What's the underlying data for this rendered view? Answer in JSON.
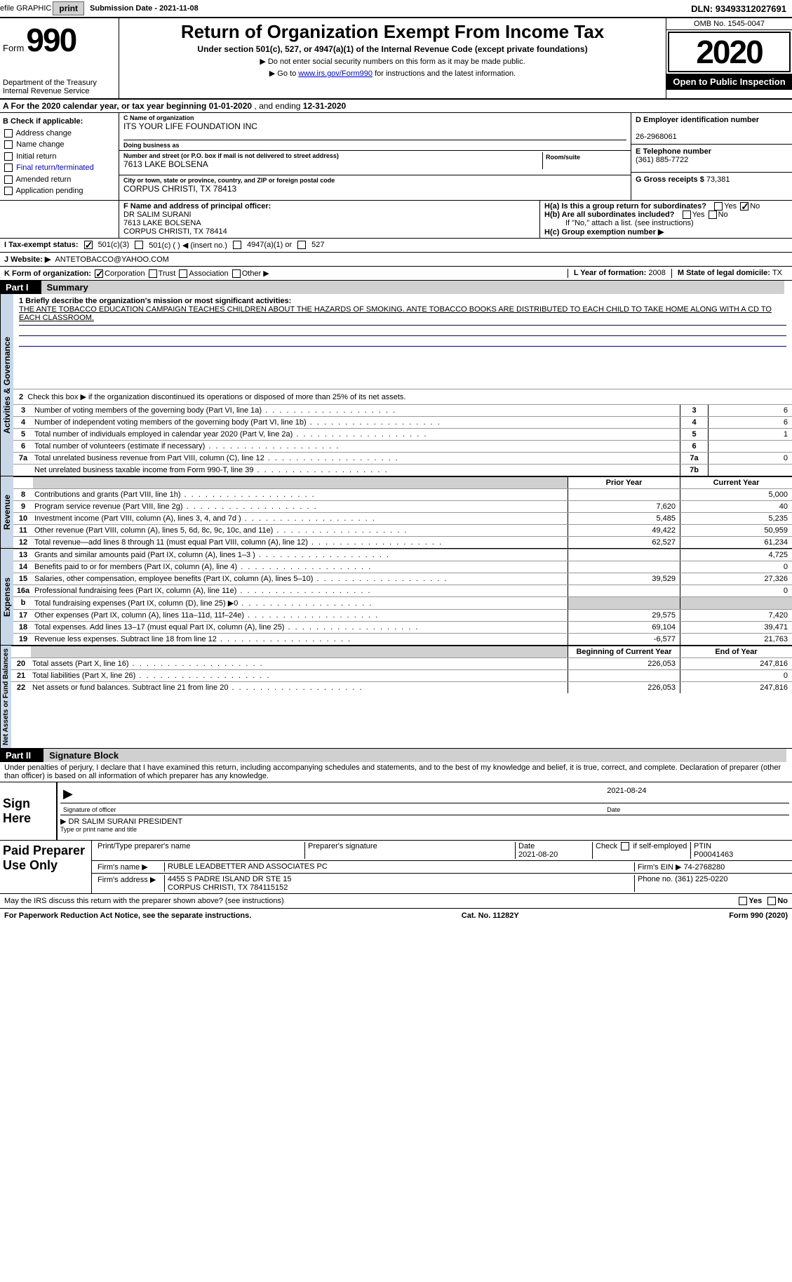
{
  "top_bar": {
    "efile_label": "efile GRAPHIC",
    "print_btn": "print",
    "submission_label": "Submission Date - ",
    "submission_date": "2021-11-08",
    "dln_label": "DLN: ",
    "dln": "93493312027691"
  },
  "header": {
    "form_label": "Form",
    "form_number": "990",
    "dept": "Department of the Treasury",
    "irs": "Internal Revenue Service",
    "title": "Return of Organization Exempt From Income Tax",
    "subtitle": "Under section 501(c), 527, or 4947(a)(1) of the Internal Revenue Code (except private foundations)",
    "note1": "▶ Do not enter social security numbers on this form as it may be made public.",
    "note2_pre": "▶ Go to ",
    "note2_link": "www.irs.gov/Form990",
    "note2_post": " for instructions and the latest information.",
    "omb": "OMB No. 1545-0047",
    "year": "2020",
    "inspection": "Open to Public Inspection"
  },
  "line_a": {
    "text_pre": "A For the 2020 calendar year, or tax year beginning ",
    "begin": "01-01-2020",
    "mid": "   , and ending ",
    "end": "12-31-2020"
  },
  "section_b": {
    "header": "B Check if applicable:",
    "opts": [
      "Address change",
      "Name change",
      "Initial return",
      "Final return/terminated",
      "Amended return",
      "Application pending"
    ]
  },
  "section_c": {
    "name_label": "C Name of organization",
    "name": "ITS YOUR LIFE FOUNDATION INC",
    "dba_label": "Doing business as",
    "addr_label": "Number and street (or P.O. box if mail is not delivered to street address)",
    "room_label": "Room/suite",
    "addr": "7613 LAKE BOLSENA",
    "city_label": "City or town, state or province, country, and ZIP or foreign postal code",
    "city": "CORPUS CHRISTI, TX  78413"
  },
  "section_d": {
    "label": "D Employer identification number",
    "ein": "26-2968061"
  },
  "section_e": {
    "label": "E Telephone number",
    "phone": "(361) 885-7722"
  },
  "section_g": {
    "label": "G Gross receipts $ ",
    "amount": "73,381"
  },
  "section_f": {
    "label": "F Name and address of principal officer:",
    "name": "DR SALIM SURANI",
    "addr1": "7613 LAKE BOLSENA",
    "addr2": "CORPUS CHRISTI, TX  78414"
  },
  "section_h": {
    "ha": "H(a)  Is this a group return for subordinates?",
    "hb": "H(b)  Are all subordinates included?",
    "hb_note": "If \"No,\" attach a list. (see instructions)",
    "hc": "H(c)  Group exemption number ▶",
    "yes": "Yes",
    "no": "No"
  },
  "section_i": {
    "label": "I  Tax-exempt status:",
    "opt1": "501(c)(3)",
    "opt2": "501(c) (  ) ◀ (insert no.)",
    "opt3": "4947(a)(1) or",
    "opt4": "527"
  },
  "section_j": {
    "label": "J  Website: ▶",
    "value": "ANTETOBACCO@YAHOO.COM"
  },
  "section_k": {
    "label": "K Form of organization:",
    "corp": "Corporation",
    "trust": "Trust",
    "assoc": "Association",
    "other": "Other ▶"
  },
  "section_l": {
    "label": "L Year of formation: ",
    "value": "2008"
  },
  "section_m": {
    "label": "M State of legal domicile: ",
    "value": "TX"
  },
  "part1": {
    "header": "Part I",
    "title": "Summary",
    "section_labels": {
      "gov": "Activities & Governance",
      "rev": "Revenue",
      "exp": "Expenses",
      "net": "Net Assets or Fund Balances"
    },
    "line1_label": "1  Briefly describe the organization's mission or most significant activities:",
    "mission": "THE ANTE TOBACCO EDUCATION CAMPAIGN TEACHES CHILDREN ABOUT THE HAZARDS OF SMOKING. ANTE TOBACCO BOOKS ARE DISTRIBUTED TO EACH CHILD TO TAKE HOME ALONG WITH A CD TO EACH CLASSROOM.",
    "line2": "Check this box ▶       if the organization discontinued its operations or disposed of more than 25% of its net assets.",
    "gov_lines": [
      {
        "no": "3",
        "desc": "Number of voting members of the governing body (Part VI, line 1a)",
        "box": "3",
        "val": "6"
      },
      {
        "no": "4",
        "desc": "Number of independent voting members of the governing body (Part VI, line 1b)",
        "box": "4",
        "val": "6"
      },
      {
        "no": "5",
        "desc": "Total number of individuals employed in calendar year 2020 (Part V, line 2a)",
        "box": "5",
        "val": "1"
      },
      {
        "no": "6",
        "desc": "Total number of volunteers (estimate if necessary)",
        "box": "6",
        "val": ""
      },
      {
        "no": "7a",
        "desc": "Total unrelated business revenue from Part VIII, column (C), line 12",
        "box": "7a",
        "val": "0"
      },
      {
        "no": "",
        "desc": "Net unrelated business taxable income from Form 990-T, line 39",
        "box": "7b",
        "val": ""
      }
    ],
    "col_py": "Prior Year",
    "col_cy": "Current Year",
    "rev_lines": [
      {
        "no": "8",
        "desc": "Contributions and grants (Part VIII, line 1h)",
        "py": "",
        "cy": "5,000"
      },
      {
        "no": "9",
        "desc": "Program service revenue (Part VIII, line 2g)",
        "py": "7,620",
        "cy": "40"
      },
      {
        "no": "10",
        "desc": "Investment income (Part VIII, column (A), lines 3, 4, and 7d )",
        "py": "5,485",
        "cy": "5,235"
      },
      {
        "no": "11",
        "desc": "Other revenue (Part VIII, column (A), lines 5, 6d, 8c, 9c, 10c, and 11e)",
        "py": "49,422",
        "cy": "50,959"
      },
      {
        "no": "12",
        "desc": "Total revenue—add lines 8 through 11 (must equal Part VIII, column (A), line 12)",
        "py": "62,527",
        "cy": "61,234"
      }
    ],
    "exp_lines": [
      {
        "no": "13",
        "desc": "Grants and similar amounts paid (Part IX, column (A), lines 1–3 )",
        "py": "",
        "cy": "4,725"
      },
      {
        "no": "14",
        "desc": "Benefits paid to or for members (Part IX, column (A), line 4)",
        "py": "",
        "cy": "0"
      },
      {
        "no": "15",
        "desc": "Salaries, other compensation, employee benefits (Part IX, column (A), lines 5–10)",
        "py": "39,529",
        "cy": "27,326"
      },
      {
        "no": "16a",
        "desc": "Professional fundraising fees (Part IX, column (A), line 11e)",
        "py": "",
        "cy": "0"
      },
      {
        "no": "b",
        "desc": "Total fundraising expenses (Part IX, column (D), line 25) ▶0",
        "py": "",
        "cy": "",
        "shade": true
      },
      {
        "no": "17",
        "desc": "Other expenses (Part IX, column (A), lines 11a–11d, 11f–24e)",
        "py": "29,575",
        "cy": "7,420"
      },
      {
        "no": "18",
        "desc": "Total expenses. Add lines 13–17 (must equal Part IX, column (A), line 25)",
        "py": "69,104",
        "cy": "39,471"
      },
      {
        "no": "19",
        "desc": "Revenue less expenses. Subtract line 18 from line 12",
        "py": "-6,577",
        "cy": "21,763"
      }
    ],
    "net_header": {
      "py": "Beginning of Current Year",
      "cy": "End of Year"
    },
    "net_lines": [
      {
        "no": "20",
        "desc": "Total assets (Part X, line 16)",
        "py": "226,053",
        "cy": "247,816"
      },
      {
        "no": "21",
        "desc": "Total liabilities (Part X, line 26)",
        "py": "",
        "cy": "0"
      },
      {
        "no": "22",
        "desc": "Net assets or fund balances. Subtract line 21 from line 20",
        "py": "226,053",
        "cy": "247,816"
      }
    ]
  },
  "part2": {
    "header": "Part II",
    "title": "Signature Block",
    "penalty": "Under penalties of perjury, I declare that I have examined this return, including accompanying schedules and statements, and to the best of my knowledge and belief, it is true, correct, and complete. Declaration of preparer (other than officer) is based on all information of which preparer has any knowledge.",
    "sign_here": "Sign Here",
    "sig_date": "2021-08-24",
    "sig_label": "Signature of officer",
    "date_label": "Date",
    "officer_name": "DR SALIM SURANI  PRESIDENT",
    "type_label": "Type or print name and title",
    "paid_label": "Paid Preparer Use Only",
    "prep_cols": {
      "c1": "Print/Type preparer's name",
      "c2": "Preparer's signature",
      "c3": "Date",
      "c4_pre": "Check",
      "c4_post": "if self-employed",
      "c5": "PTIN"
    },
    "prep_date": "2021-08-20",
    "ptin": "P00041463",
    "firm_name_label": "Firm's name    ▶",
    "firm_name": "RUBLE LEADBETTER AND ASSOCIATES PC",
    "firm_ein_label": "Firm's EIN ▶",
    "firm_ein": "74-2768280",
    "firm_addr_label": "Firm's address ▶",
    "firm_addr1": "4455 S PADRE ISLAND DR STE 15",
    "firm_addr2": "CORPUS CHRISTI, TX  784115152",
    "firm_phone_label": "Phone no. ",
    "firm_phone": "(361) 225-0220",
    "may_discuss": "May the IRS discuss this return with the preparer shown above? (see instructions)",
    "paperwork": "For Paperwork Reduction Act Notice, see the separate instructions.",
    "cat": "Cat. No. 11282Y",
    "form_foot": "Form 990 (2020)"
  }
}
